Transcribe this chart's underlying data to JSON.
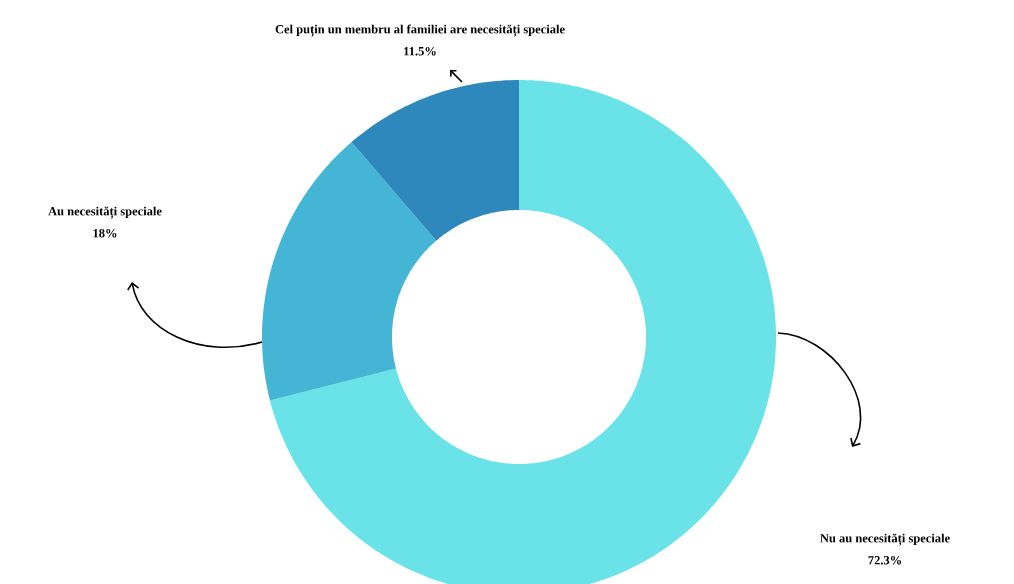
{
  "chart_data": {
    "type": "donut",
    "categories": [
      "Nu au necesități speciale",
      "Au necesități speciale",
      "Cel puțin un membru al familiei are necesități speciale"
    ],
    "values": [
      72.3,
      18,
      11.5
    ],
    "value_labels": [
      "72.3%",
      "18%",
      "11.5%"
    ],
    "colors": [
      "#6ae3e8",
      "#45b5d6",
      "#2e88bb"
    ]
  }
}
